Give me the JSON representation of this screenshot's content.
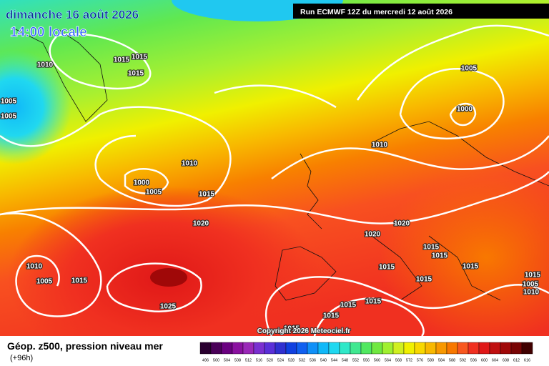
{
  "header": {
    "date": "dimanche 16 août 2026",
    "time": "14:00 locale",
    "run": "Run ECMWF 12Z du mercredi 12 août 2026"
  },
  "isobar_labels": [
    "1015",
    "1015",
    "1010",
    "1015",
    "1005",
    "1005",
    "1005",
    "1000",
    "1010",
    "1010",
    "1000",
    "1005",
    "1015",
    "1020",
    "1020",
    "1020",
    "1015",
    "1015",
    "1015",
    "1010",
    "1005",
    "1015",
    "1015",
    "1015",
    "1015",
    "1005",
    "1010",
    "1025",
    "1015",
    "1015",
    "1015",
    "1015"
  ],
  "copyright": "Copyright 2026 Meteociel.fr",
  "legend": {
    "title": "Géop. z500, pression niveau mer",
    "lead_time": "(+96h)",
    "scale": {
      "labels": [
        496,
        500,
        504,
        508,
        512,
        516,
        520,
        524,
        528,
        532,
        536,
        540,
        544,
        548,
        552,
        556,
        560,
        564,
        568,
        572,
        576,
        580,
        584,
        588,
        592,
        596,
        600,
        604,
        608,
        612,
        616
      ],
      "colors": [
        "#2a0030",
        "#4a0058",
        "#6a0080",
        "#8a10a0",
        "#9a28b8",
        "#7a30d0",
        "#5a30d8",
        "#3030d0",
        "#1040e0",
        "#1060f0",
        "#1090f8",
        "#10b8f8",
        "#20d8f0",
        "#30e8c8",
        "#40e890",
        "#50e860",
        "#70e840",
        "#a0f030",
        "#d0f020",
        "#f0f000",
        "#f8d800",
        "#f8b800",
        "#f89800",
        "#f87800",
        "#f85820",
        "#f03020",
        "#e01818",
        "#c01010",
        "#a00808",
        "#780404",
        "#400000"
      ]
    }
  }
}
